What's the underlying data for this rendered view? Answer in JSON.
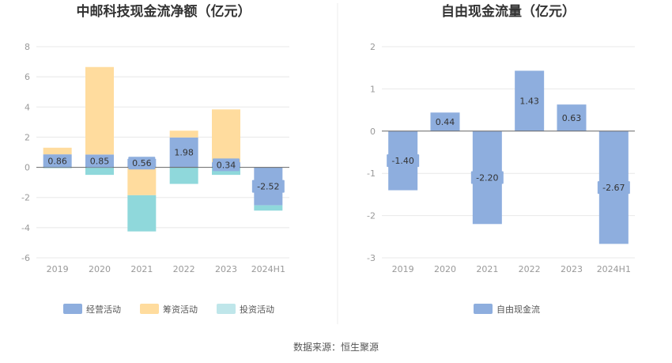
{
  "chart_data": [
    {
      "type": "bar",
      "stacked": true,
      "title": "中邮科技现金流净额（亿元）",
      "categories": [
        "2019",
        "2020",
        "2021",
        "2022",
        "2023",
        "2024H1"
      ],
      "ylim": [
        -6,
        8
      ],
      "yticks": [
        -6,
        -4,
        -2,
        0,
        2,
        4,
        6,
        8
      ],
      "series": [
        {
          "name": "经营活动",
          "color": "#8eaede",
          "values": [
            0.86,
            0.85,
            0.56,
            1.98,
            0.34,
            -2.52
          ],
          "labels": [
            "0.86",
            "0.85",
            "0.56",
            "1.98",
            "0.34",
            "-2.52"
          ]
        },
        {
          "name": "筹资活动",
          "color": "#ffdc9e",
          "values": [
            0.44,
            5.8,
            -1.85,
            0.45,
            3.5,
            0
          ]
        },
        {
          "name": "投资活动",
          "color": "#8fd8db",
          "values": [
            -0.05,
            -0.5,
            -2.4,
            -1.1,
            -0.5,
            -0.35
          ]
        }
      ]
    },
    {
      "type": "bar",
      "title": "自由现金流量（亿元）",
      "categories": [
        "2019",
        "2020",
        "2021",
        "2022",
        "2023",
        "2024H1"
      ],
      "ylim": [
        -3,
        2
      ],
      "yticks": [
        -3,
        -2,
        -1,
        0,
        1,
        2
      ],
      "series": [
        {
          "name": "自由现金流",
          "color": "#8eaede",
          "values": [
            -1.4,
            0.44,
            -2.2,
            1.43,
            0.63,
            -2.67
          ],
          "labels": [
            "-1.40",
            "0.44",
            "-2.20",
            "1.43",
            "0.63",
            "-2.67"
          ]
        }
      ]
    }
  ],
  "source": "数据来源：恒生聚源"
}
